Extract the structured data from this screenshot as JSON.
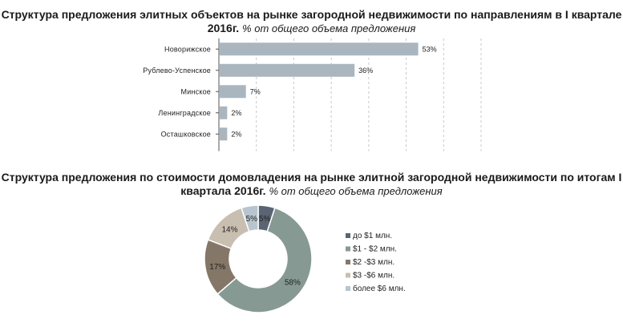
{
  "chart_data": [
    {
      "type": "bar",
      "orientation": "horizontal",
      "title": "Структура предложения элитных объектов на рынке загородной недвижимости по направлениям в I квартале 2016г.",
      "subtitle": "% от общего объема предложения",
      "categories": [
        "Новорижское",
        "Рублево-Успенское",
        "Минское",
        "Ленинградское",
        "Осташковское"
      ],
      "values": [
        53,
        36,
        7,
        2,
        2
      ],
      "value_labels": [
        "53%",
        "36%",
        "7%",
        "2%",
        "2%"
      ],
      "xlim": [
        0,
        70
      ],
      "grid": true,
      "bar_color": "#aab6bf"
    },
    {
      "type": "pie",
      "donut": true,
      "title": "Структура предложения по стоимости домовладения на рынке элитной загородной недвижимости по итогам I квартала 2016г.",
      "subtitle": "% от общего объема предложения",
      "categories": [
        "до $1 млн.",
        "$1 - $2 млн.",
        "$2 -$3 млн.",
        "$3 -$6 млн.",
        "более $6 млн."
      ],
      "values": [
        5,
        58,
        17,
        14,
        5
      ],
      "value_labels": [
        "5%",
        "58%",
        "17%",
        "14%",
        "5%"
      ],
      "colors": [
        "#5b6472",
        "#869a93",
        "#857768",
        "#c9bfb0",
        "#b8c5cf"
      ],
      "legend": "right"
    }
  ]
}
